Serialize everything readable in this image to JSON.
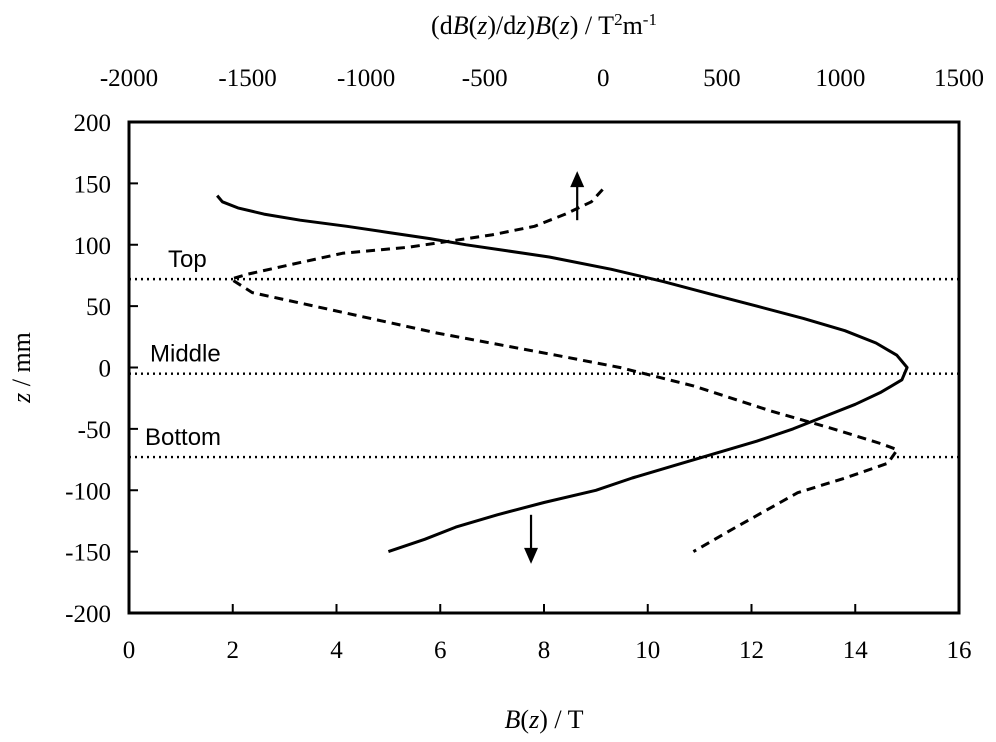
{
  "chart_data": {
    "type": "line",
    "bottom_axis": {
      "label_parts": [
        {
          "text": "B",
          "style": "italic"
        },
        {
          "text": "(",
          "style": "normal"
        },
        {
          "text": "z",
          "style": "italic"
        },
        {
          "text": ") / T",
          "style": "normal"
        }
      ],
      "range": [
        0,
        16
      ],
      "ticks": [
        "0",
        "2",
        "4",
        "6",
        "8",
        "10",
        "12",
        "14",
        "16"
      ]
    },
    "top_axis": {
      "label_parts": [
        {
          "text": "(d",
          "style": "normal"
        },
        {
          "text": "B",
          "style": "italic"
        },
        {
          "text": "(",
          "style": "normal"
        },
        {
          "text": "z",
          "style": "italic"
        },
        {
          "text": ")/d",
          "style": "normal"
        },
        {
          "text": "z",
          "style": "italic"
        },
        {
          "text": ")",
          "style": "normal"
        },
        {
          "text": "B",
          "style": "italic"
        },
        {
          "text": "(",
          "style": "normal"
        },
        {
          "text": "z",
          "style": "italic"
        },
        {
          "text": ") / T",
          "style": "normal"
        },
        {
          "text": "2",
          "style": "sup"
        },
        {
          "text": "m",
          "style": "normal"
        },
        {
          "text": "-1",
          "style": "sup"
        }
      ],
      "range": [
        -2000,
        1500
      ],
      "ticks": [
        "-2000",
        "-1500",
        "-1000",
        "-500",
        "0",
        "500",
        "1000",
        "1500"
      ]
    },
    "left_axis": {
      "label_parts": [
        {
          "text": "z",
          "style": "italic"
        },
        {
          "text": " / mm",
          "style": "normal"
        }
      ],
      "range": [
        -200,
        200
      ],
      "ticks": [
        "200",
        "150",
        "100",
        "50",
        "0",
        "-50",
        "-100",
        "-150",
        "-200"
      ]
    },
    "series": [
      {
        "axis": "bottom",
        "line_style": "solid",
        "points": [
          [
            1.7,
            140
          ],
          [
            1.8,
            135
          ],
          [
            2.1,
            130
          ],
          [
            2.6,
            125
          ],
          [
            3.3,
            120
          ],
          [
            4.2,
            115
          ],
          [
            5.0,
            110
          ],
          [
            5.8,
            105
          ],
          [
            6.5,
            100
          ],
          [
            7.3,
            95
          ],
          [
            8.1,
            90
          ],
          [
            9.3,
            80
          ],
          [
            10.3,
            70
          ],
          [
            11.2,
            60
          ],
          [
            12.1,
            50
          ],
          [
            13.0,
            40
          ],
          [
            13.8,
            30
          ],
          [
            14.4,
            20
          ],
          [
            14.8,
            10
          ],
          [
            15.0,
            0
          ],
          [
            14.9,
            -10
          ],
          [
            14.5,
            -20
          ],
          [
            14.0,
            -30
          ],
          [
            13.4,
            -40
          ],
          [
            12.8,
            -50
          ],
          [
            12.1,
            -60
          ],
          [
            11.3,
            -70
          ],
          [
            10.5,
            -80
          ],
          [
            9.7,
            -90
          ],
          [
            9.0,
            -100
          ],
          [
            8.0,
            -110
          ],
          [
            7.1,
            -120
          ],
          [
            6.3,
            -130
          ],
          [
            5.7,
            -140
          ],
          [
            5.0,
            -150
          ]
        ]
      },
      {
        "axis": "top",
        "line_style": "dashed",
        "points": [
          [
            -3,
            145
          ],
          [
            -50,
            135
          ],
          [
            -160,
            125
          ],
          [
            -290,
            115
          ],
          [
            -470,
            108
          ],
          [
            -820,
            98
          ],
          [
            -1100,
            93
          ],
          [
            -1360,
            82
          ],
          [
            -1500,
            76
          ],
          [
            -1570,
            72
          ],
          [
            -1480,
            61
          ],
          [
            -1100,
            45
          ],
          [
            -700,
            28
          ],
          [
            -200,
            10
          ],
          [
            70,
            0
          ],
          [
            380,
            -15
          ],
          [
            700,
            -35
          ],
          [
            970,
            -50
          ],
          [
            1170,
            -62
          ],
          [
            1240,
            -67
          ],
          [
            1200,
            -78
          ],
          [
            1020,
            -90
          ],
          [
            820,
            -102
          ],
          [
            560,
            -130
          ],
          [
            380,
            -150
          ]
        ]
      }
    ],
    "reference_lines": [
      {
        "label": "Top",
        "z": 72
      },
      {
        "label": "Middle",
        "z": -5
      },
      {
        "label": "Bottom",
        "z": -73
      }
    ],
    "annotations": [
      {
        "type": "arrow-up",
        "x_top": -110,
        "z_from": 120,
        "z_to": 160
      },
      {
        "type": "arrow-down",
        "x_bottom": 7.75,
        "z_from": -120,
        "z_to": -160
      }
    ]
  }
}
